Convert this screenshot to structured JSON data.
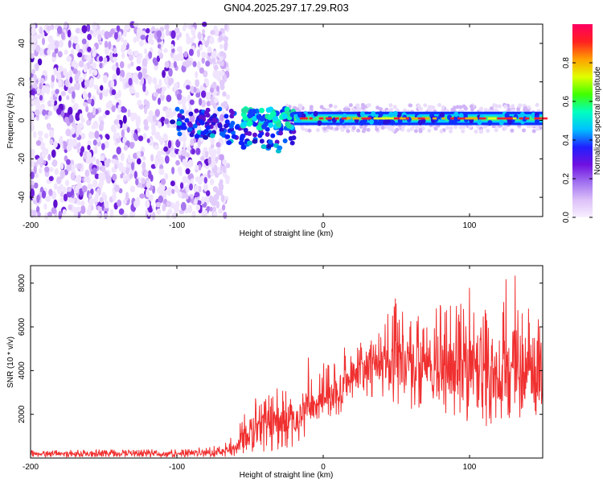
{
  "title": "GN04.2025.297.17.29.R03",
  "chart_data": [
    {
      "type": "heatmap",
      "xlabel": "Height of straight line (km)",
      "ylabel": "Frequency (Hz)",
      "xlim": [
        -200,
        150
      ],
      "ylim": [
        -50,
        50
      ],
      "x_ticks": [
        -200,
        -100,
        0,
        100
      ],
      "y_ticks": [
        -40,
        -20,
        0,
        20,
        40
      ],
      "colorbar": {
        "label": "Normalized spectral amplitude",
        "range": [
          0,
          1
        ],
        "ticks": [
          "0.0",
          "0.2",
          "0.4",
          "0.6",
          "0.8"
        ],
        "tick_values": [
          0.0,
          0.2,
          0.4,
          0.6,
          0.8
        ],
        "colors": [
          "#f8f0ff",
          "#dcc0f8",
          "#a070f0",
          "#7010e0",
          "#2020ff",
          "#00c0ff",
          "#00ffc0",
          "#40ff00",
          "#e0ff00",
          "#ffa000",
          "#ff2020",
          "#ff0060"
        ]
      },
      "features": {
        "noise_region_x": [
          -200,
          -68
        ],
        "signal_line_frequency": 1,
        "signal_onset_x": -20,
        "descending_branch": [
          [
            -100,
            -2
          ],
          [
            -80,
            -8
          ],
          [
            -60,
            -10
          ],
          [
            -50,
            -12
          ],
          [
            -35,
            -14
          ]
        ]
      }
    },
    {
      "type": "line",
      "xlabel": "Height of straight line (km)",
      "ylabel": "SNR (10 * v/v)",
      "xlim": [
        -200,
        150
      ],
      "ylim": [
        0,
        8800
      ],
      "x_ticks": [
        -200,
        -100,
        0,
        100
      ],
      "y_ticks": [
        2000,
        4000,
        6000,
        8000
      ],
      "color": "#f03030",
      "series": [
        {
          "name": "SNR",
          "envelope_x": [
            -200,
            -100,
            -70,
            -60,
            -50,
            -40,
            -30,
            -20,
            -10,
            0,
            10,
            20,
            30,
            40,
            50,
            60,
            70,
            80,
            90,
            100,
            110,
            120,
            130,
            140,
            150
          ],
          "envelope_lo": [
            0,
            0,
            0,
            100,
            200,
            300,
            400,
            300,
            800,
            1600,
            1800,
            2700,
            2800,
            2600,
            2400,
            2200,
            2200,
            2000,
            1800,
            1600,
            1400,
            1300,
            1200,
            1200,
            1500
          ],
          "envelope_hi": [
            400,
            400,
            600,
            1100,
            2900,
            2800,
            3300,
            3300,
            4800,
            4400,
            4800,
            5800,
            5200,
            6200,
            7400,
            7000,
            6200,
            7200,
            7000,
            8200,
            7500,
            7800,
            8700,
            8400,
            7000
          ],
          "envelope_mid": [
            200,
            200,
            250,
            500,
            1200,
            1500,
            1800,
            1800,
            2200,
            2600,
            3000,
            3800,
            4100,
            4300,
            4400,
            4200,
            4000,
            4100,
            4100,
            4300,
            4000,
            4100,
            4200,
            4100,
            4000
          ]
        }
      ]
    }
  ]
}
